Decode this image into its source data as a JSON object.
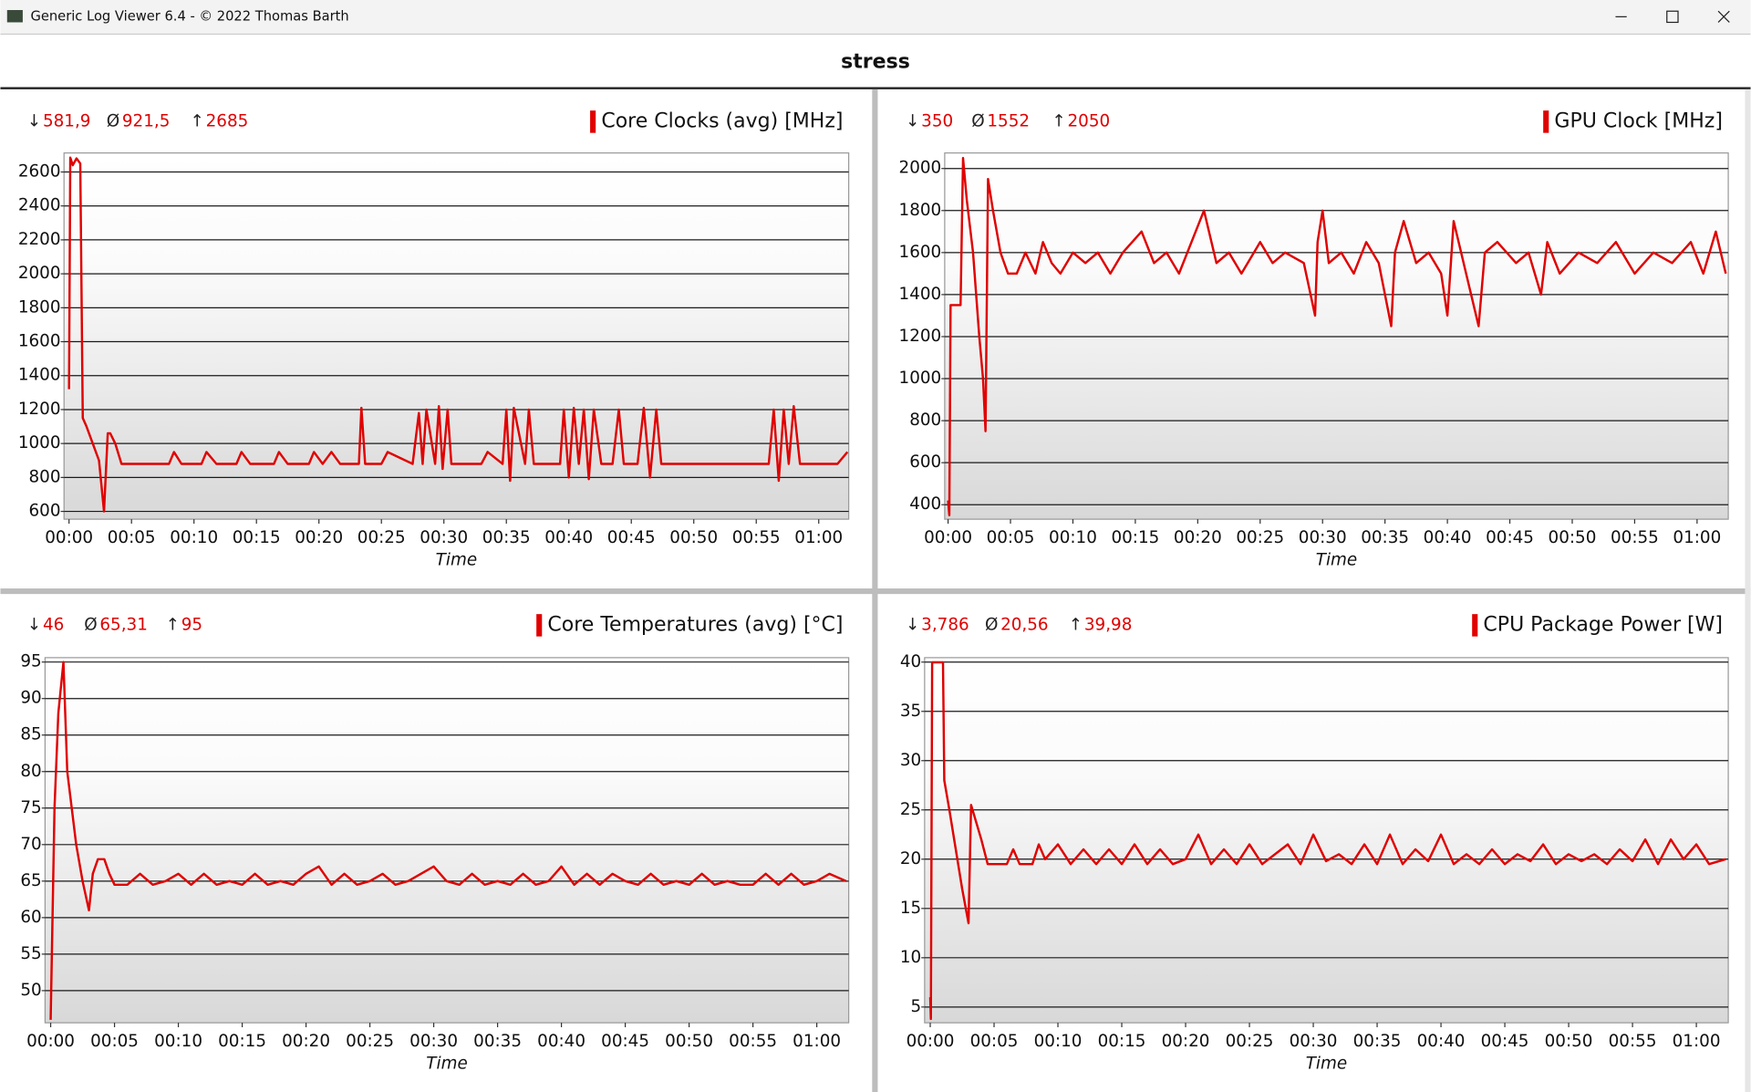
{
  "window": {
    "title": "Generic Log Viewer 6.4 - © 2022 Thomas Barth"
  },
  "page_title": "stress",
  "chart_data": [
    {
      "type": "line",
      "grid": true,
      "stats": [
        {
          "symbol": "↓",
          "label": "581,9"
        },
        {
          "symbol": "Ø",
          "label": "921,5"
        },
        {
          "symbol": "↑",
          "label": "2685"
        }
      ],
      "x_label": "Time",
      "xlim": [
        -0.4,
        62.4
      ],
      "ylim": [
        554,
        2712
      ],
      "xticks": [
        {
          "value": 0,
          "label": "00:00"
        },
        {
          "value": 5,
          "label": "00:05"
        },
        {
          "value": 10,
          "label": "00:10"
        },
        {
          "value": 15,
          "label": "00:15"
        },
        {
          "value": 20,
          "label": "00:20"
        },
        {
          "value": 25,
          "label": "00:25"
        },
        {
          "value": 30,
          "label": "00:30"
        },
        {
          "value": 35,
          "label": "00:35"
        },
        {
          "value": 40,
          "label": "00:40"
        },
        {
          "value": 45,
          "label": "00:45"
        },
        {
          "value": 50,
          "label": "00:50"
        },
        {
          "value": 55,
          "label": "00:55"
        },
        {
          "value": 60,
          "label": "01:00"
        }
      ],
      "yticks": [
        600,
        800,
        1000,
        1200,
        1400,
        1600,
        1800,
        2000,
        2200,
        2400,
        2600
      ],
      "x": [
        0,
        0.1,
        0.3,
        0.6,
        0.9,
        1.1,
        1.4,
        1.9,
        2.4,
        2.8,
        3.1,
        3.3,
        3.7,
        4.2,
        8.0,
        8.4,
        9.0,
        10.6,
        11.0,
        11.8,
        13.4,
        13.8,
        14.5,
        16.4,
        16.8,
        17.5,
        19.2,
        19.6,
        20.3,
        21.0,
        21.7,
        23.2,
        23.4,
        23.7,
        25.0,
        25.5,
        27.5,
        28.0,
        28.3,
        28.6,
        29.3,
        29.6,
        29.9,
        30.3,
        30.6,
        31.0,
        33.0,
        33.5,
        34.7,
        35.0,
        35.3,
        35.6,
        36.5,
        36.8,
        37.2,
        39.3,
        39.6,
        40.0,
        40.4,
        40.8,
        41.2,
        41.6,
        42.0,
        42.6,
        43.5,
        44.0,
        44.4,
        45.5,
        46.0,
        46.5,
        47.0,
        47.4,
        47.8,
        50.0,
        53.0,
        55.5,
        56.0,
        56.4,
        56.8,
        57.2,
        57.6,
        58.0,
        58.5,
        61.0,
        61.5,
        62.3
      ],
      "series": [
        {
          "name": "Core Clocks (avg) [MHz]",
          "color": "#e00000",
          "values": [
            1320,
            2685,
            2640,
            2680,
            2650,
            1150,
            1100,
            1000,
            900,
            600,
            1060,
            1060,
            1000,
            880,
            880,
            950,
            880,
            880,
            950,
            880,
            880,
            950,
            880,
            880,
            950,
            880,
            880,
            950,
            880,
            950,
            880,
            880,
            1210,
            880,
            880,
            950,
            880,
            1180,
            880,
            1200,
            880,
            1220,
            850,
            1200,
            880,
            880,
            880,
            950,
            880,
            1200,
            780,
            1210,
            880,
            1200,
            880,
            880,
            1200,
            800,
            1210,
            880,
            1200,
            790,
            1200,
            880,
            880,
            1200,
            880,
            880,
            1210,
            800,
            1200,
            880,
            880,
            880,
            880,
            880,
            880,
            1200,
            780,
            1200,
            880,
            1220,
            880,
            880,
            880,
            950
          ]
        }
      ]
    },
    {
      "type": "line",
      "grid": true,
      "stats": [
        {
          "symbol": "↓",
          "label": "350"
        },
        {
          "symbol": "Ø",
          "label": "1552"
        },
        {
          "symbol": "↑",
          "label": "2050"
        }
      ],
      "x_label": "Time",
      "xlim": [
        -0.27,
        62.5
      ],
      "ylim": [
        331,
        2074
      ],
      "xticks": [
        {
          "value": 0,
          "label": "00:00"
        },
        {
          "value": 5,
          "label": "00:05"
        },
        {
          "value": 10,
          "label": "00:10"
        },
        {
          "value": 15,
          "label": "00:15"
        },
        {
          "value": 20,
          "label": "00:20"
        },
        {
          "value": 25,
          "label": "00:25"
        },
        {
          "value": 30,
          "label": "00:30"
        },
        {
          "value": 35,
          "label": "00:35"
        },
        {
          "value": 40,
          "label": "00:40"
        },
        {
          "value": 45,
          "label": "00:45"
        },
        {
          "value": 50,
          "label": "00:50"
        },
        {
          "value": 55,
          "label": "00:55"
        },
        {
          "value": 60,
          "label": "01:00"
        }
      ],
      "yticks": [
        400,
        600,
        800,
        1000,
        1200,
        1400,
        1600,
        1800,
        2000
      ],
      "x": [
        0,
        0.1,
        0.2,
        1.0,
        1.2,
        1.5,
        2.0,
        2.5,
        2.8,
        3.0,
        3.2,
        3.6,
        4.2,
        4.8,
        5.5,
        6.2,
        7.0,
        7.6,
        8.3,
        9.0,
        10,
        11,
        12,
        13,
        14,
        15.5,
        16.5,
        17.5,
        18.5,
        19.5,
        20.5,
        21.5,
        22.5,
        23.5,
        25,
        26,
        27,
        28.5,
        29.4,
        29.6,
        30,
        30.5,
        31.5,
        32.5,
        33.5,
        34.5,
        35.5,
        35.8,
        36.5,
        37.5,
        38.5,
        39.5,
        40,
        40.5,
        41.5,
        42.5,
        43,
        44,
        45.5,
        46.5,
        47.5,
        48,
        49,
        50.5,
        52,
        53.5,
        55,
        56.5,
        58,
        59.5,
        60.5,
        61.5,
        62.3
      ],
      "series": [
        {
          "name": "GPU Clock [MHz]",
          "color": "#e00000",
          "values": [
            420,
            350,
            1350,
            1350,
            2050,
            1850,
            1600,
            1200,
            1000,
            750,
            1950,
            1800,
            1600,
            1500,
            1500,
            1600,
            1500,
            1650,
            1550,
            1500,
            1600,
            1550,
            1600,
            1500,
            1600,
            1700,
            1550,
            1600,
            1500,
            1650,
            1800,
            1550,
            1600,
            1500,
            1650,
            1550,
            1600,
            1550,
            1300,
            1650,
            1800,
            1550,
            1600,
            1500,
            1650,
            1550,
            1250,
            1600,
            1750,
            1550,
            1600,
            1500,
            1300,
            1750,
            1500,
            1250,
            1600,
            1650,
            1550,
            1600,
            1400,
            1650,
            1500,
            1600,
            1550,
            1650,
            1500,
            1600,
            1550,
            1650,
            1500,
            1700,
            1500
          ]
        }
      ]
    },
    {
      "type": "line",
      "grid": true,
      "stats": [
        {
          "symbol": "↓",
          "label": "46"
        },
        {
          "symbol": "Ø",
          "label": "65,31"
        },
        {
          "symbol": "↑",
          "label": "95"
        }
      ],
      "x_label": "Time",
      "xlim": [
        -0.44,
        62.5
      ],
      "ylim": [
        45.6,
        95.6
      ],
      "xticks": [
        {
          "value": 0,
          "label": "00:00"
        },
        {
          "value": 5,
          "label": "00:05"
        },
        {
          "value": 10,
          "label": "00:10"
        },
        {
          "value": 15,
          "label": "00:15"
        },
        {
          "value": 20,
          "label": "00:20"
        },
        {
          "value": 25,
          "label": "00:25"
        },
        {
          "value": 30,
          "label": "00:30"
        },
        {
          "value": 35,
          "label": "00:35"
        },
        {
          "value": 40,
          "label": "00:40"
        },
        {
          "value": 45,
          "label": "00:45"
        },
        {
          "value": 50,
          "label": "00:50"
        },
        {
          "value": 55,
          "label": "00:55"
        },
        {
          "value": 60,
          "label": "01:00"
        }
      ],
      "yticks": [
        50,
        55,
        60,
        65,
        70,
        75,
        80,
        85,
        90,
        95
      ],
      "x": [
        0,
        0.3,
        0.6,
        1.0,
        1.3,
        2.0,
        2.5,
        3.0,
        3.3,
        3.7,
        4.2,
        4.6,
        5.0,
        6,
        7,
        8,
        9,
        10,
        11,
        12,
        13,
        14,
        15,
        16,
        17,
        18,
        19,
        20,
        21,
        22,
        23,
        24,
        25,
        26,
        27,
        28,
        29,
        30,
        31,
        32,
        33,
        34,
        35,
        36,
        37,
        38,
        39,
        40,
        41,
        42,
        43,
        44,
        45,
        46,
        47,
        48,
        49,
        50,
        51,
        52,
        53,
        54,
        55,
        56,
        57,
        58,
        59,
        60,
        61,
        62.3
      ],
      "series": [
        {
          "name": "Core Temperatures (avg) [°C]",
          "color": "#e00000",
          "values": [
            46,
            75,
            88,
            95,
            80,
            70,
            65,
            61,
            66,
            68,
            68,
            66,
            64.5,
            64.5,
            66,
            64.5,
            65,
            66,
            64.5,
            66,
            64.5,
            65,
            64.5,
            66,
            64.5,
            65,
            64.5,
            66,
            67,
            64.5,
            66,
            64.5,
            65,
            66,
            64.5,
            65,
            66,
            67,
            65,
            64.5,
            66,
            64.5,
            65,
            64.5,
            66,
            64.5,
            65,
            67,
            64.5,
            66,
            64.5,
            66,
            65,
            64.5,
            66,
            64.5,
            65,
            64.5,
            66,
            64.5,
            65,
            64.5,
            64.5,
            66,
            64.5,
            66,
            64.5,
            65,
            66,
            65
          ]
        }
      ]
    },
    {
      "type": "line",
      "grid": true,
      "stats": [
        {
          "symbol": "↓",
          "label": "3,786"
        },
        {
          "symbol": "Ø",
          "label": "20,56"
        },
        {
          "symbol": "↑",
          "label": "39,98"
        }
      ],
      "x_label": "Time",
      "xlim": [
        -0.44,
        62.5
      ],
      "ylim": [
        3.4,
        40.45
      ],
      "xticks": [
        {
          "value": 0,
          "label": "00:00"
        },
        {
          "value": 5,
          "label": "00:05"
        },
        {
          "value": 10,
          "label": "00:10"
        },
        {
          "value": 15,
          "label": "00:15"
        },
        {
          "value": 20,
          "label": "00:20"
        },
        {
          "value": 25,
          "label": "00:25"
        },
        {
          "value": 30,
          "label": "00:30"
        },
        {
          "value": 35,
          "label": "00:35"
        },
        {
          "value": 40,
          "label": "00:40"
        },
        {
          "value": 45,
          "label": "00:45"
        },
        {
          "value": 50,
          "label": "00:50"
        },
        {
          "value": 55,
          "label": "00:55"
        },
        {
          "value": 60,
          "label": "01:00"
        }
      ],
      "yticks": [
        5,
        10,
        15,
        20,
        25,
        30,
        35,
        40
      ],
      "x": [
        0,
        0.05,
        0.15,
        1.0,
        1.1,
        1.5,
        2.0,
        2.5,
        3.0,
        3.2,
        4.0,
        4.5,
        5,
        6,
        6.5,
        7,
        8,
        8.5,
        9,
        10,
        11,
        12,
        13,
        14,
        15,
        16,
        17,
        18,
        19,
        20,
        21,
        22,
        23,
        24,
        25,
        26,
        27,
        28,
        29,
        30,
        31,
        32,
        33,
        34,
        35,
        36,
        37,
        38,
        39,
        40,
        41,
        42,
        43,
        44,
        45,
        46,
        47,
        48,
        49,
        50,
        51,
        52,
        53,
        54,
        55,
        56,
        57,
        58,
        59,
        60,
        61,
        62.3
      ],
      "series": [
        {
          "name": "CPU Package Power [W]",
          "color": "#e00000",
          "values": [
            6,
            3.786,
            39.98,
            39.98,
            28,
            25,
            21,
            17,
            13.5,
            25.5,
            22,
            19.5,
            19.5,
            19.5,
            21,
            19.5,
            19.5,
            21.5,
            20,
            21.5,
            19.5,
            21,
            19.5,
            21,
            19.5,
            21.5,
            19.5,
            21,
            19.5,
            20,
            22.5,
            19.5,
            21,
            19.5,
            21.5,
            19.5,
            20.5,
            21.5,
            19.5,
            22.5,
            19.8,
            20.5,
            19.5,
            21.5,
            19.5,
            22.5,
            19.5,
            21,
            19.8,
            22.5,
            19.5,
            20.5,
            19.5,
            21,
            19.5,
            20.5,
            19.8,
            21.5,
            19.5,
            20.5,
            19.8,
            20.5,
            19.5,
            21,
            19.8,
            22,
            19.5,
            22,
            20,
            21.5,
            19.5,
            20
          ]
        }
      ]
    }
  ]
}
